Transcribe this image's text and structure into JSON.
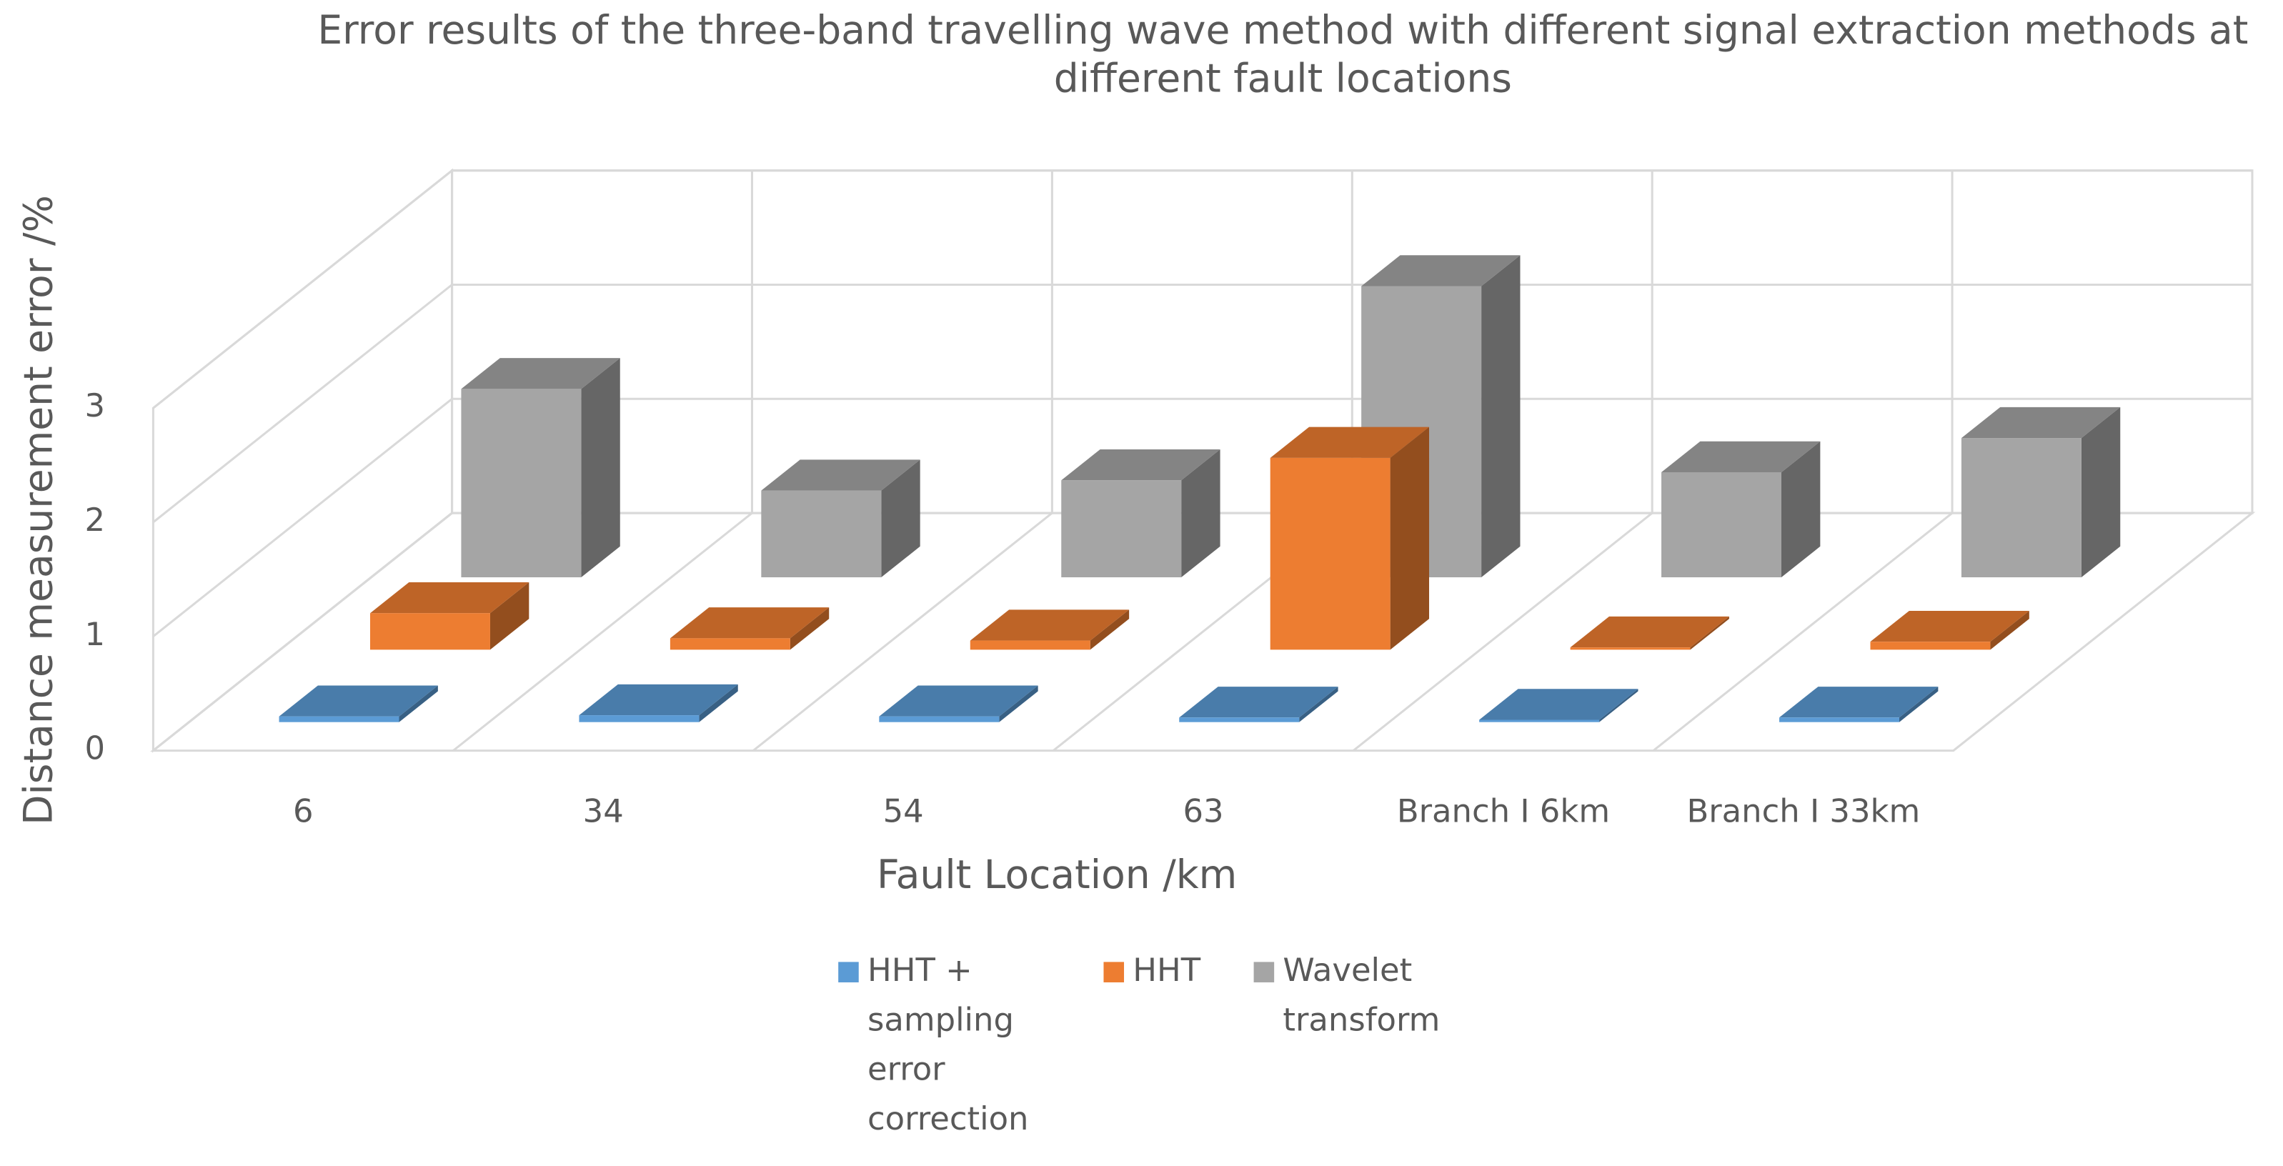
{
  "chart_data": {
    "type": "bar3d",
    "title": "Error results of the three-band travelling wave method with different signal extraction methods at different fault locations",
    "x_label": "Fault Location /km",
    "y_label": "Distance measurement error /%",
    "categories": [
      "6",
      "34",
      "54",
      "63",
      "Branch Ⅰ 6km",
      "Branch Ⅰ 33km"
    ],
    "series": [
      {
        "name": "HHT + sampling error correction",
        "color": "#5b9bd5",
        "values": [
          0.05,
          0.06,
          0.05,
          0.04,
          0.02,
          0.04
        ]
      },
      {
        "name": "HHT",
        "color": "#ed7d31",
        "values": [
          0.32,
          0.1,
          0.08,
          1.68,
          0.02,
          0.07
        ]
      },
      {
        "name": "Wavelet transform",
        "color": "#a5a5a5",
        "values": [
          1.65,
          0.76,
          0.85,
          2.55,
          0.92,
          1.22
        ]
      }
    ],
    "ylim": [
      0,
      3
    ],
    "yticks": [
      0,
      1,
      2,
      3
    ],
    "grid": true,
    "legend": "bottom"
  }
}
